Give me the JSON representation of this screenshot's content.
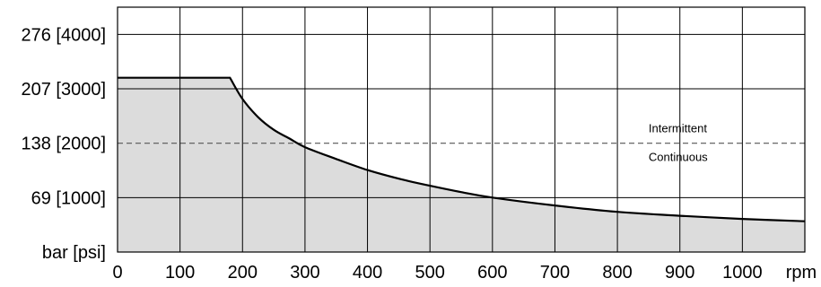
{
  "chart_data": {
    "type": "area",
    "title": "",
    "xlabel": "rpm",
    "ylabel": "bar [psi]",
    "xlim": [
      0,
      1100
    ],
    "ylim": [
      0,
      310.5
    ],
    "x_ticks": [
      "0",
      "100",
      "200",
      "300",
      "400",
      "500",
      "600",
      "700",
      "800",
      "900",
      "1000"
    ],
    "y_ticks": [
      {
        "value": 69,
        "label": "69 [1000]"
      },
      {
        "value": 138,
        "label": "138 [2000]"
      },
      {
        "value": 207,
        "label": "207 [3000]"
      },
      {
        "value": 276,
        "label": "276 [4000]"
      }
    ],
    "grid": true,
    "series": [
      {
        "x": [
          0,
          180,
          200,
          225,
          250,
          275,
          300,
          350,
          400,
          450,
          500,
          550,
          600,
          700,
          800,
          900,
          1000,
          1100
        ],
        "y": [
          221,
          221,
          194,
          171,
          155,
          144,
          133,
          118,
          104,
          93,
          84,
          76,
          69,
          59,
          51,
          46,
          42,
          39
        ]
      }
    ],
    "reference_line": {
      "value": 138,
      "style": "dashed"
    },
    "annotations": [
      {
        "text": "Intermittent",
        "x": 850,
        "position": "above"
      },
      {
        "text": "Continuous",
        "x": 850,
        "position": "below"
      }
    ],
    "colors": {
      "fill": "#dcdcdc",
      "line": "#000000",
      "grid": "#000000"
    }
  }
}
